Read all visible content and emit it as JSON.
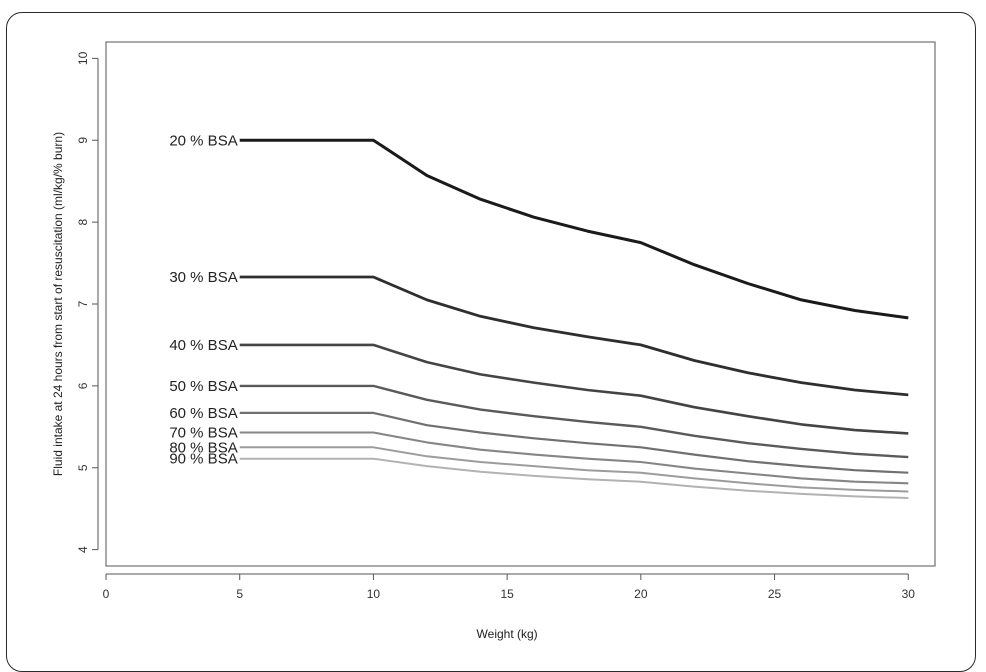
{
  "chart_data": {
    "type": "line",
    "xlabel": "Weight (kg)",
    "ylabel": "Fluid intake at 24 hours from start of resuscitation (ml/kg/% burn)",
    "xlim": [
      0,
      31
    ],
    "ylim": [
      3.8,
      10.2
    ],
    "x_ticks": [
      "0",
      "5",
      "10",
      "15",
      "20",
      "25",
      "30"
    ],
    "y_ticks": [
      "4",
      "5",
      "6",
      "7",
      "8",
      "9",
      "10"
    ],
    "grid": false,
    "legend": "none",
    "x": [
      5,
      10,
      12,
      14,
      16,
      18,
      20,
      22,
      24,
      26,
      28,
      30
    ],
    "series": [
      {
        "name": "20 % BSA",
        "color": "#1a1a1a",
        "values": [
          9.0,
          9.0,
          8.57,
          8.28,
          8.06,
          7.89,
          7.75,
          7.48,
          7.25,
          7.05,
          6.92,
          6.83
        ]
      },
      {
        "name": "30 % BSA",
        "color": "#2e2e2e",
        "values": [
          7.33,
          7.33,
          7.05,
          6.85,
          6.71,
          6.6,
          6.5,
          6.31,
          6.16,
          6.04,
          5.95,
          5.89
        ]
      },
      {
        "name": "40 % BSA",
        "color": "#444444",
        "values": [
          6.5,
          6.5,
          6.29,
          6.14,
          6.04,
          5.95,
          5.88,
          5.74,
          5.63,
          5.53,
          5.46,
          5.42
        ]
      },
      {
        "name": "50 % BSA",
        "color": "#5a5a5a",
        "values": [
          6.0,
          6.0,
          5.83,
          5.71,
          5.63,
          5.56,
          5.5,
          5.39,
          5.3,
          5.23,
          5.17,
          5.13
        ]
      },
      {
        "name": "60 % BSA",
        "color": "#707070",
        "values": [
          5.67,
          5.67,
          5.52,
          5.43,
          5.36,
          5.3,
          5.25,
          5.16,
          5.08,
          5.02,
          4.97,
          4.94
        ]
      },
      {
        "name": "70 % BSA",
        "color": "#868686",
        "values": [
          5.43,
          5.43,
          5.31,
          5.22,
          5.16,
          5.11,
          5.07,
          4.99,
          4.93,
          4.87,
          4.83,
          4.81
        ]
      },
      {
        "name": "80 % BSA",
        "color": "#9c9c9c",
        "values": [
          5.25,
          5.25,
          5.14,
          5.07,
          5.02,
          4.97,
          4.94,
          4.87,
          4.81,
          4.76,
          4.73,
          4.71
        ]
      },
      {
        "name": "90 % BSA",
        "color": "#b2b2b2",
        "values": [
          5.11,
          5.11,
          5.02,
          4.95,
          4.9,
          4.86,
          4.83,
          4.77,
          4.72,
          4.68,
          4.65,
          4.63
        ]
      }
    ]
  }
}
